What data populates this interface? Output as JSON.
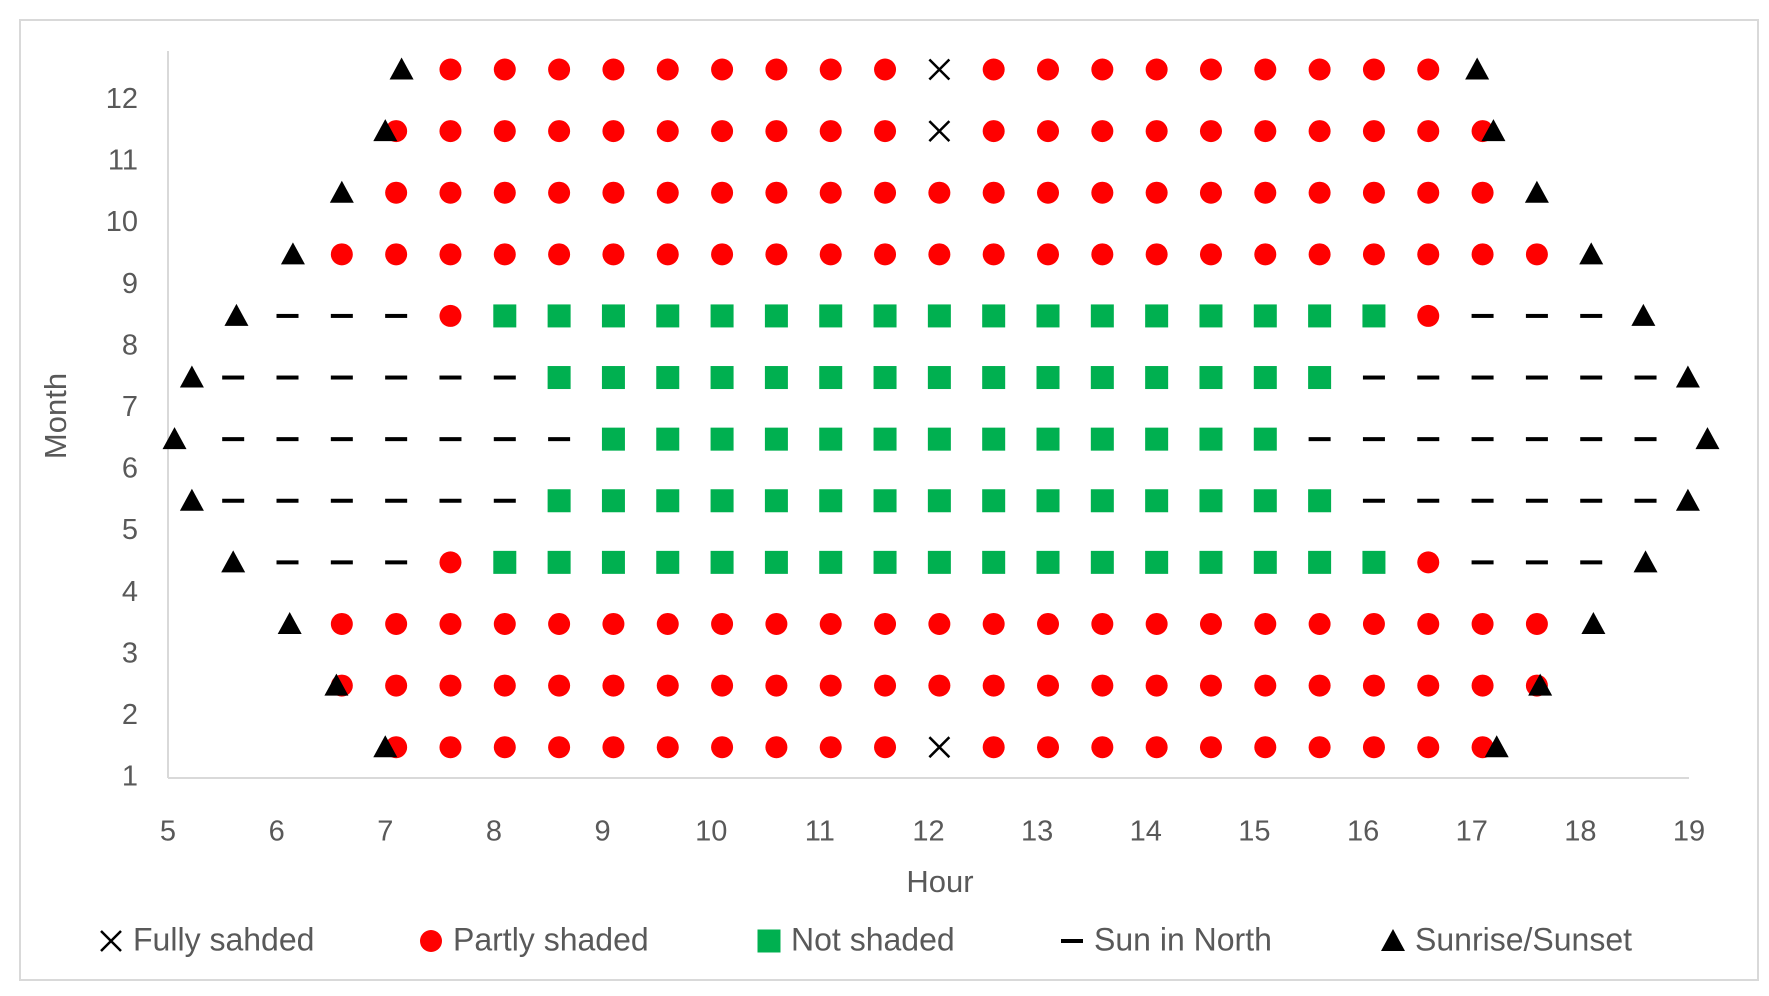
{
  "chart_data": {
    "type": "scatter",
    "x_label": "Hour",
    "y_label": "Month",
    "xlim": [
      5,
      19
    ],
    "xticks": [
      5,
      6,
      7,
      8,
      9,
      10,
      11,
      12,
      13,
      14,
      15,
      16,
      17,
      18,
      19
    ],
    "ylim": [
      1,
      12.8
    ],
    "yticks": [
      1,
      2,
      3,
      4,
      5,
      6,
      7,
      8,
      9,
      10,
      11,
      12
    ],
    "grid": false,
    "legend": "bottom",
    "series": [
      {
        "name": "Fully sahded",
        "color": "#000000",
        "marker": "x",
        "x": [
          12.1,
          12.1,
          12.1
        ],
        "y": [
          12.5,
          11.5,
          1.5
        ]
      },
      {
        "name": "Partly shaded",
        "color": "#ff0000",
        "marker": "circle",
        "x": [
          7.6,
          8.1,
          8.6,
          9.1,
          9.6,
          10.1,
          10.6,
          11.1,
          11.6,
          12.6,
          13.1,
          13.6,
          14.1,
          14.6,
          15.1,
          15.6,
          16.1,
          16.6,
          7.1,
          7.6,
          8.1,
          8.6,
          9.1,
          9.6,
          10.1,
          10.6,
          11.1,
          11.6,
          12.6,
          13.1,
          13.6,
          14.1,
          14.6,
          15.1,
          15.6,
          16.1,
          16.6,
          17.1,
          7.1,
          7.6,
          8.1,
          8.6,
          9.1,
          9.6,
          10.1,
          10.6,
          11.1,
          11.6,
          12.1,
          12.6,
          13.1,
          13.6,
          14.1,
          14.6,
          15.1,
          15.6,
          16.1,
          16.6,
          17.1,
          6.6,
          7.1,
          7.6,
          8.1,
          8.6,
          9.1,
          9.6,
          10.1,
          10.6,
          11.1,
          11.6,
          12.1,
          12.6,
          13.1,
          13.6,
          14.1,
          14.6,
          15.1,
          15.6,
          16.1,
          16.6,
          17.1,
          17.6,
          7.6,
          16.6,
          7.6,
          16.6,
          6.6,
          7.1,
          7.6,
          8.1,
          8.6,
          9.1,
          9.6,
          10.1,
          10.6,
          11.1,
          11.6,
          12.1,
          12.6,
          13.1,
          13.6,
          14.1,
          14.6,
          15.1,
          15.6,
          16.1,
          16.6,
          17.1,
          17.6,
          6.6,
          7.1,
          7.6,
          8.1,
          8.6,
          9.1,
          9.6,
          10.1,
          10.6,
          11.1,
          11.6,
          12.1,
          12.6,
          13.1,
          13.6,
          14.1,
          14.6,
          15.1,
          15.6,
          16.1,
          16.6,
          17.1,
          17.6,
          7.1,
          7.6,
          8.1,
          8.6,
          9.1,
          9.6,
          10.1,
          10.6,
          11.1,
          11.6,
          12.6,
          13.1,
          13.6,
          14.1,
          14.6,
          15.1,
          15.6,
          16.1,
          16.6,
          17.1
        ],
        "y": [
          12.5,
          12.5,
          12.5,
          12.5,
          12.5,
          12.5,
          12.5,
          12.5,
          12.5,
          12.5,
          12.5,
          12.5,
          12.5,
          12.5,
          12.5,
          12.5,
          12.5,
          12.5,
          11.5,
          11.5,
          11.5,
          11.5,
          11.5,
          11.5,
          11.5,
          11.5,
          11.5,
          11.5,
          11.5,
          11.5,
          11.5,
          11.5,
          11.5,
          11.5,
          11.5,
          11.5,
          11.5,
          11.5,
          10.5,
          10.5,
          10.5,
          10.5,
          10.5,
          10.5,
          10.5,
          10.5,
          10.5,
          10.5,
          10.5,
          10.5,
          10.5,
          10.5,
          10.5,
          10.5,
          10.5,
          10.5,
          10.5,
          10.5,
          10.5,
          9.5,
          9.5,
          9.5,
          9.5,
          9.5,
          9.5,
          9.5,
          9.5,
          9.5,
          9.5,
          9.5,
          9.5,
          9.5,
          9.5,
          9.5,
          9.5,
          9.5,
          9.5,
          9.5,
          9.5,
          9.5,
          9.5,
          9.5,
          8.5,
          8.5,
          4.5,
          4.5,
          3.5,
          3.5,
          3.5,
          3.5,
          3.5,
          3.5,
          3.5,
          3.5,
          3.5,
          3.5,
          3.5,
          3.5,
          3.5,
          3.5,
          3.5,
          3.5,
          3.5,
          3.5,
          3.5,
          3.5,
          3.5,
          3.5,
          3.5,
          2.5,
          2.5,
          2.5,
          2.5,
          2.5,
          2.5,
          2.5,
          2.5,
          2.5,
          2.5,
          2.5,
          2.5,
          2.5,
          2.5,
          2.5,
          2.5,
          2.5,
          2.5,
          2.5,
          2.5,
          2.5,
          2.5,
          2.5,
          1.5,
          1.5,
          1.5,
          1.5,
          1.5,
          1.5,
          1.5,
          1.5,
          1.5,
          1.5,
          1.5,
          1.5,
          1.5,
          1.5,
          1.5,
          1.5,
          1.5,
          1.5,
          1.5,
          1.5
        ]
      },
      {
        "name": "Not shaded",
        "color": "#00b050",
        "marker": "square",
        "x": [
          8.1,
          8.6,
          9.1,
          9.6,
          10.1,
          10.6,
          11.1,
          11.6,
          12.1,
          12.6,
          13.1,
          13.6,
          14.1,
          14.6,
          15.1,
          15.6,
          16.1,
          8.6,
          9.1,
          9.6,
          10.1,
          10.6,
          11.1,
          11.6,
          12.1,
          12.6,
          13.1,
          13.6,
          14.1,
          14.6,
          15.1,
          15.6,
          9.1,
          9.6,
          10.1,
          10.6,
          11.1,
          11.6,
          12.1,
          12.6,
          13.1,
          13.6,
          14.1,
          14.6,
          15.1,
          8.6,
          9.1,
          9.6,
          10.1,
          10.6,
          11.1,
          11.6,
          12.1,
          12.6,
          13.1,
          13.6,
          14.1,
          14.6,
          15.1,
          15.6,
          8.1,
          8.6,
          9.1,
          9.6,
          10.1,
          10.6,
          11.1,
          11.6,
          12.1,
          12.6,
          13.1,
          13.6,
          14.1,
          14.6,
          15.1,
          15.6,
          16.1
        ],
        "y": [
          8.5,
          8.5,
          8.5,
          8.5,
          8.5,
          8.5,
          8.5,
          8.5,
          8.5,
          8.5,
          8.5,
          8.5,
          8.5,
          8.5,
          8.5,
          8.5,
          8.5,
          7.5,
          7.5,
          7.5,
          7.5,
          7.5,
          7.5,
          7.5,
          7.5,
          7.5,
          7.5,
          7.5,
          7.5,
          7.5,
          7.5,
          7.5,
          6.5,
          6.5,
          6.5,
          6.5,
          6.5,
          6.5,
          6.5,
          6.5,
          6.5,
          6.5,
          6.5,
          6.5,
          6.5,
          5.5,
          5.5,
          5.5,
          5.5,
          5.5,
          5.5,
          5.5,
          5.5,
          5.5,
          5.5,
          5.5,
          5.5,
          5.5,
          5.5,
          5.5,
          4.5,
          4.5,
          4.5,
          4.5,
          4.5,
          4.5,
          4.5,
          4.5,
          4.5,
          4.5,
          4.5,
          4.5,
          4.5,
          4.5,
          4.5,
          4.5,
          4.5
        ]
      },
      {
        "name": "Sun in North",
        "color": "#000000",
        "marker": "dash",
        "x": [
          6.1,
          6.6,
          7.1,
          17.1,
          17.6,
          18.1,
          5.6,
          6.1,
          6.6,
          7.1,
          7.6,
          8.1,
          16.1,
          16.6,
          17.1,
          17.6,
          18.1,
          18.6,
          5.6,
          6.1,
          6.6,
          7.1,
          7.6,
          8.1,
          8.6,
          15.6,
          16.1,
          16.6,
          17.1,
          17.6,
          18.1,
          18.6,
          5.6,
          6.1,
          6.6,
          7.1,
          7.6,
          8.1,
          16.1,
          16.6,
          17.1,
          17.6,
          18.1,
          18.6,
          6.1,
          6.6,
          7.1,
          17.1,
          17.6,
          18.1
        ],
        "y": [
          8.5,
          8.5,
          8.5,
          8.5,
          8.5,
          8.5,
          7.5,
          7.5,
          7.5,
          7.5,
          7.5,
          7.5,
          7.5,
          7.5,
          7.5,
          7.5,
          7.5,
          7.5,
          6.5,
          6.5,
          6.5,
          6.5,
          6.5,
          6.5,
          6.5,
          6.5,
          6.5,
          6.5,
          6.5,
          6.5,
          6.5,
          6.5,
          5.5,
          5.5,
          5.5,
          5.5,
          5.5,
          5.5,
          5.5,
          5.5,
          5.5,
          5.5,
          5.5,
          5.5,
          4.5,
          4.5,
          4.5,
          4.5,
          4.5,
          4.5
        ]
      },
      {
        "name": "Sunrise/Sunset",
        "color": "#000000",
        "marker": "triangle",
        "x": [
          7.15,
          17.05,
          7.0,
          17.2,
          6.6,
          17.6,
          6.15,
          18.1,
          5.63,
          18.58,
          5.22,
          18.99,
          5.06,
          19.17,
          5.22,
          18.99,
          5.6,
          18.6,
          6.12,
          18.12,
          6.55,
          17.63,
          7.0,
          17.23
        ],
        "y": [
          12.5,
          12.5,
          11.5,
          11.5,
          10.5,
          10.5,
          9.5,
          9.5,
          8.5,
          8.5,
          7.5,
          7.5,
          6.5,
          6.5,
          5.5,
          5.5,
          4.5,
          4.5,
          3.5,
          3.5,
          2.5,
          2.5,
          1.5,
          1.5
        ]
      }
    ]
  }
}
